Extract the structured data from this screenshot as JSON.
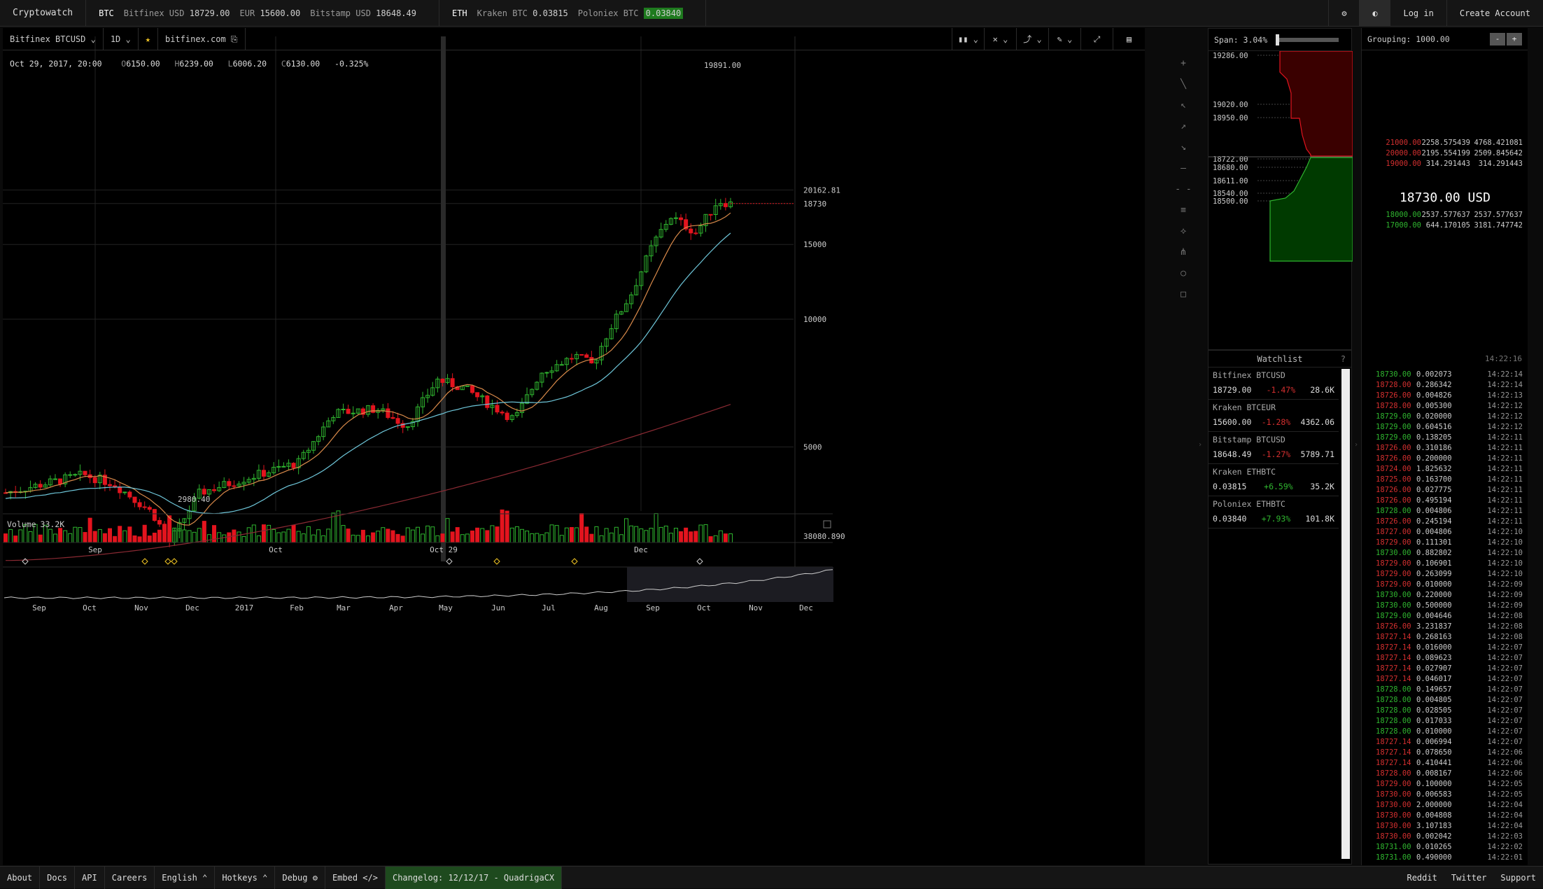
{
  "topbar": {
    "brand": "Cryptowatch",
    "groups": [
      {
        "symbol": "BTC",
        "tickers": [
          {
            "label": "Bitfinex USD",
            "value": "18729.00"
          },
          {
            "label": "EUR",
            "value": "15600.00"
          },
          {
            "label": "Bitstamp USD",
            "value": "18648.49"
          }
        ]
      },
      {
        "symbol": "ETH",
        "tickers": [
          {
            "label": "Kraken BTC",
            "value": "0.03815"
          },
          {
            "label": "Poloniex BTC",
            "value": "0.03840"
          }
        ]
      }
    ],
    "settings_icon": "gear-icon",
    "theme_icon": "contrast-icon",
    "login_label": "Log in",
    "create_account_label": "Create Account"
  },
  "chart_toolbar": {
    "market": "Bitfinex BTCUSD ⌄",
    "period": "1D ⌄",
    "favorite_icon": "star-icon",
    "exchange_link": "bitfinex.com",
    "tool_labels": [
      "▮▮ ⌄",
      "✕ ⌄",
      "⤴ ⌄",
      "✎ ⌄",
      "⤢",
      "▤"
    ]
  },
  "ohlc": {
    "date": "Oct 29, 2017, 20:00",
    "open": "6150.00",
    "high": "6239.00",
    "low": "6006.20",
    "close": "6130.00",
    "change": "-0.325%"
  },
  "draw_tools": [
    "+",
    "╲",
    "↖",
    "↗",
    "↘",
    "—",
    "- -",
    "≡",
    "⟡",
    "⋔",
    "○",
    "□"
  ],
  "chart_data": {
    "type": "candlestick",
    "price_axis_ticks": [
      20162.81,
      18730.0,
      15000,
      10000,
      5000
    ],
    "labels": {
      "high": "19891.00",
      "low": "2980.40"
    },
    "current_price": 18730.0,
    "x_labels": [
      "Sep",
      "Oct",
      "Oct 29",
      "Dec"
    ],
    "volume": {
      "label": "Volume",
      "value": "33.2K",
      "axis_label": "38080.890"
    },
    "navigator_labels": [
      "Sep",
      "Oct",
      "Nov",
      "Dec",
      "2017",
      "Feb",
      "Mar",
      "Apr",
      "May",
      "Jun",
      "Jul",
      "Aug",
      "Sep",
      "Oct",
      "Nov",
      "Dec"
    ],
    "colors": {
      "up": "#2fb52f",
      "down": "#e3141e",
      "ma_fast": "#d98a4a",
      "ma_slow": "#6ec6d9",
      "ma_long": "#8a2a33"
    }
  },
  "depth": {
    "span_label": "Span: 3.04%",
    "price_labels": [
      "19286.00",
      "19020.00",
      "18950.00",
      "18722.00",
      "18680.00",
      "18611.00",
      "18540.00",
      "18500.00"
    ]
  },
  "watchlist": {
    "title": "Watchlist",
    "help": "?",
    "items": [
      {
        "name": "Bitfinex BTCUSD",
        "price": "18729.00",
        "change": "-1.47%",
        "volume": "28.6K",
        "dir": "neg"
      },
      {
        "name": "Kraken BTCEUR",
        "price": "15600.00",
        "change": "-1.28%",
        "volume": "4362.06",
        "dir": "neg"
      },
      {
        "name": "Bitstamp BTCUSD",
        "price": "18648.49",
        "change": "-1.27%",
        "volume": "5789.71",
        "dir": "neg"
      },
      {
        "name": "Kraken ETHBTC",
        "price": "0.03815",
        "change": "+6.59%",
        "volume": "35.2K",
        "dir": "pos"
      },
      {
        "name": "Poloniex ETHBTC",
        "price": "0.03840",
        "change": "+7.93%",
        "volume": "101.8K",
        "dir": "pos"
      }
    ]
  },
  "orderbook": {
    "grouping_label": "Grouping: 1000.00",
    "minus": "-",
    "plus": "+",
    "asks": [
      [
        "21000.00",
        "2258.575439",
        "4768.421081"
      ],
      [
        "20000.00",
        "2195.554199",
        "2509.845642"
      ],
      [
        "19000.00",
        "314.291443",
        "314.291443"
      ]
    ],
    "mid": "18730.00 USD",
    "bids": [
      [
        "18000.00",
        "2537.577637",
        "2537.577637"
      ],
      [
        "17000.00",
        "644.170105",
        "3181.747742"
      ]
    ],
    "trades_time": "14:22:16",
    "trades": [
      [
        "18730.00",
        "0.002073",
        "14:22:14",
        "b"
      ],
      [
        "18728.00",
        "0.286342",
        "14:22:14",
        "s"
      ],
      [
        "18726.00",
        "0.004826",
        "14:22:13",
        "s"
      ],
      [
        "18728.00",
        "0.005300",
        "14:22:12",
        "s"
      ],
      [
        "18729.00",
        "0.020000",
        "14:22:12",
        "b"
      ],
      [
        "18729.00",
        "0.604516",
        "14:22:12",
        "b"
      ],
      [
        "18729.00",
        "0.138205",
        "14:22:11",
        "b"
      ],
      [
        "18726.00",
        "0.310186",
        "14:22:11",
        "s"
      ],
      [
        "18726.00",
        "0.200000",
        "14:22:11",
        "s"
      ],
      [
        "18724.00",
        "1.825632",
        "14:22:11",
        "s"
      ],
      [
        "18725.00",
        "0.163700",
        "14:22:11",
        "s"
      ],
      [
        "18726.00",
        "0.027775",
        "14:22:11",
        "s"
      ],
      [
        "18726.00",
        "0.495194",
        "14:22:11",
        "s"
      ],
      [
        "18728.00",
        "0.004806",
        "14:22:11",
        "b"
      ],
      [
        "18726.00",
        "0.245194",
        "14:22:11",
        "s"
      ],
      [
        "18727.00",
        "0.004806",
        "14:22:10",
        "s"
      ],
      [
        "18729.00",
        "0.111301",
        "14:22:10",
        "s"
      ],
      [
        "18730.00",
        "0.882802",
        "14:22:10",
        "b"
      ],
      [
        "18729.00",
        "0.106901",
        "14:22:10",
        "s"
      ],
      [
        "18729.00",
        "0.263099",
        "14:22:10",
        "s"
      ],
      [
        "18729.00",
        "0.010000",
        "14:22:09",
        "s"
      ],
      [
        "18730.00",
        "0.220000",
        "14:22:09",
        "b"
      ],
      [
        "18730.00",
        "0.500000",
        "14:22:09",
        "b"
      ],
      [
        "18729.00",
        "0.004646",
        "14:22:08",
        "b"
      ],
      [
        "18726.00",
        "3.231837",
        "14:22:08",
        "s"
      ],
      [
        "18727.14",
        "0.268163",
        "14:22:08",
        "s"
      ],
      [
        "18727.14",
        "0.016000",
        "14:22:07",
        "s"
      ],
      [
        "18727.14",
        "0.089623",
        "14:22:07",
        "s"
      ],
      [
        "18727.14",
        "0.027907",
        "14:22:07",
        "s"
      ],
      [
        "18727.14",
        "0.046017",
        "14:22:07",
        "s"
      ],
      [
        "18728.00",
        "0.149657",
        "14:22:07",
        "b"
      ],
      [
        "18728.00",
        "0.004805",
        "14:22:07",
        "b"
      ],
      [
        "18728.00",
        "0.028505",
        "14:22:07",
        "b"
      ],
      [
        "18728.00",
        "0.017033",
        "14:22:07",
        "b"
      ],
      [
        "18728.00",
        "0.010000",
        "14:22:07",
        "b"
      ],
      [
        "18727.14",
        "0.006994",
        "14:22:07",
        "s"
      ],
      [
        "18727.14",
        "0.078650",
        "14:22:06",
        "s"
      ],
      [
        "18727.14",
        "0.410441",
        "14:22:06",
        "s"
      ],
      [
        "18728.00",
        "0.008167",
        "14:22:06",
        "s"
      ],
      [
        "18729.00",
        "0.100000",
        "14:22:05",
        "s"
      ],
      [
        "18730.00",
        "0.006583",
        "14:22:05",
        "s"
      ],
      [
        "18730.00",
        "2.000000",
        "14:22:04",
        "s"
      ],
      [
        "18730.00",
        "0.004808",
        "14:22:04",
        "s"
      ],
      [
        "18730.00",
        "3.107183",
        "14:22:04",
        "s"
      ],
      [
        "18730.00",
        "0.002042",
        "14:22:03",
        "s"
      ],
      [
        "18731.00",
        "0.010265",
        "14:22:02",
        "b"
      ],
      [
        "18731.00",
        "0.490000",
        "14:22:01",
        "b"
      ]
    ]
  },
  "bottombar": {
    "links": [
      "About",
      "Docs",
      "API",
      "Careers",
      "English ⌃",
      "Hotkeys ⌃",
      "Debug ⚙",
      "Embed </>"
    ],
    "changelog": "Changelog: 12/12/17 - QuadrigaCX",
    "right_links": [
      "Reddit",
      "Twitter",
      "Support"
    ]
  }
}
